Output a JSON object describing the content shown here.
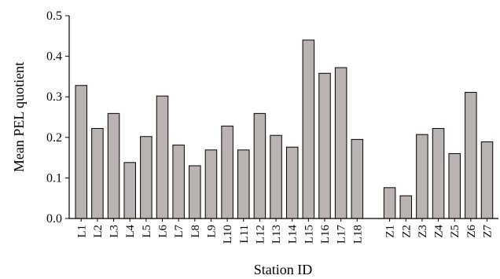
{
  "chart_data": {
    "type": "bar",
    "title": "",
    "xlabel": "Station ID",
    "ylabel": "Mean PEL quotient",
    "ylim": [
      0,
      0.5
    ],
    "yticks": [
      "0.0",
      "0.1",
      "0.2",
      "0.3",
      "0.4",
      "0.5"
    ],
    "grid": false,
    "legend": "none",
    "bar_color": "#b9b4b2",
    "groups": [
      {
        "categories": [
          "L1",
          "L2",
          "L3",
          "L4",
          "L5",
          "L6",
          "L7",
          "L8",
          "L9",
          "L10",
          "L11",
          "L12",
          "L13",
          "L14",
          "L15",
          "L16",
          "L17",
          "L18"
        ],
        "values": [
          0.328,
          0.222,
          0.259,
          0.138,
          0.202,
          0.302,
          0.181,
          0.13,
          0.169,
          0.228,
          0.169,
          0.259,
          0.205,
          0.176,
          0.44,
          0.358,
          0.372,
          0.195
        ]
      },
      {
        "categories": [
          "Z1",
          "Z2",
          "Z3",
          "Z4",
          "Z5",
          "Z6",
          "Z7"
        ],
        "values": [
          0.076,
          0.056,
          0.207,
          0.222,
          0.16,
          0.311,
          0.189
        ]
      }
    ]
  }
}
